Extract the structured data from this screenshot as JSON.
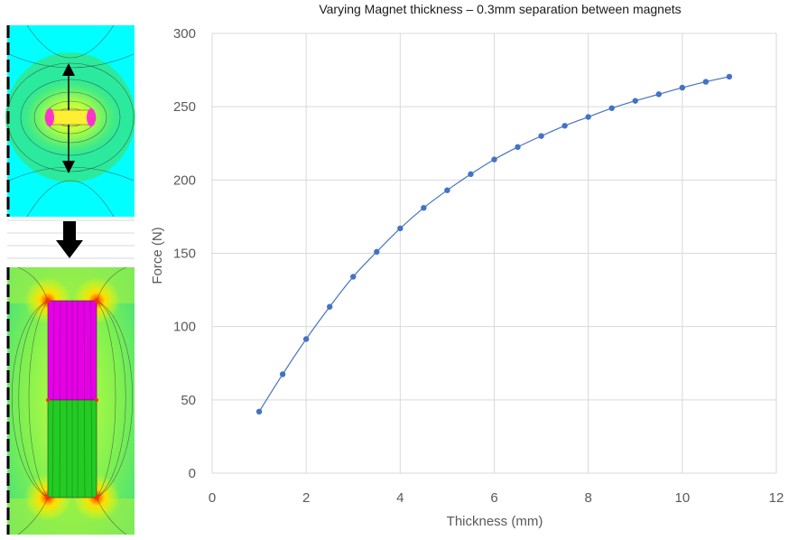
{
  "chart_data": {
    "type": "line",
    "title": "Varying Magnet thickness – 0.3mm separation between magnets",
    "xlabel": "Thickness (mm)",
    "ylabel": "Force (N)",
    "xlim": [
      0,
      12
    ],
    "ylim": [
      0,
      300
    ],
    "x_ticks": [
      0,
      2,
      4,
      6,
      8,
      10,
      12
    ],
    "y_ticks": [
      0,
      50,
      100,
      150,
      200,
      250,
      300
    ],
    "grid": true,
    "series": [
      {
        "color": "#4472c4",
        "marker": "circle",
        "x": [
          1,
          1.5,
          2,
          2.5,
          3,
          3.5,
          4,
          4.5,
          5,
          5.5,
          6,
          6.5,
          7,
          7.5,
          8,
          8.5,
          9,
          9.5,
          10,
          10.5,
          11
        ],
        "y": [
          42,
          67.5,
          91.5,
          113.5,
          134,
          151,
          167,
          181,
          193,
          204,
          214,
          222.5,
          230,
          237,
          243,
          249,
          254,
          258.5,
          263,
          267,
          270.5
        ]
      }
    ]
  },
  "figure": {
    "top_panel": {
      "background": "#00ffff",
      "field_color": "#33e68c",
      "magnet_colors": [
        "#ff00ff",
        "#ff3030",
        "#ffff00"
      ]
    },
    "bottom_panel": {
      "top_magnet_color": "#e600e6",
      "bottom_magnet_color": "#22cc22",
      "field_colors": [
        "#ffff00",
        "#b3ff33",
        "#33e68c"
      ]
    },
    "arrow": "down-arrow-icon"
  }
}
